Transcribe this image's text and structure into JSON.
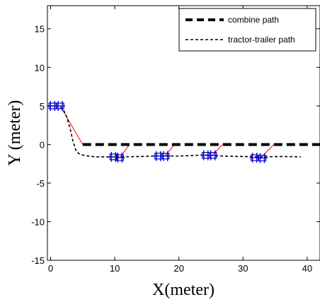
{
  "chart_data": {
    "type": "line",
    "xlabel": "X(meter)",
    "ylabel": "Y (meter)",
    "xlim": [
      -0.5,
      42
    ],
    "ylim": [
      -15,
      18
    ],
    "xticks": [
      0,
      10,
      20,
      30,
      40
    ],
    "yticks": [
      15,
      10,
      5,
      0,
      -5,
      -10,
      -15
    ],
    "grid": false,
    "legend": "top-right",
    "series": [
      {
        "name": "combine path",
        "style": "thick-dashed",
        "color": "#000000",
        "x": [
          5,
          42
        ],
        "y": [
          0,
          0
        ]
      },
      {
        "name": "tractor-trailer path",
        "style": "dashed",
        "color": "#000000",
        "x": [
          0,
          1,
          1.5,
          2,
          2.5,
          3,
          3.5,
          4,
          4.6,
          5.5,
          7,
          9,
          10.5,
          14,
          17,
          20,
          24,
          27,
          30,
          33,
          36,
          39
        ],
        "y": [
          5,
          5,
          4.9,
          4.5,
          3.6,
          2.2,
          0.4,
          -0.9,
          -1.3,
          -1.45,
          -1.6,
          -1.6,
          -1.6,
          -1.55,
          -1.45,
          -1.5,
          -1.35,
          -1.5,
          -1.55,
          -1.6,
          -1.55,
          -1.6
        ]
      }
    ],
    "guides": [
      {
        "color": "#ff0000",
        "x": [
          1.5,
          5
        ],
        "y": [
          5,
          0
        ]
      },
      {
        "color": "#ff0000",
        "x": [
          10.8,
          12.3
        ],
        "y": [
          -1.7,
          0
        ]
      },
      {
        "color": "#ff0000",
        "x": [
          17.8,
          19.3
        ],
        "y": [
          -1.5,
          0
        ]
      },
      {
        "color": "#ff0000",
        "x": [
          25.2,
          26.8
        ],
        "y": [
          -1.4,
          0
        ]
      },
      {
        "color": "#ff0000",
        "x": [
          32.8,
          34.8
        ],
        "y": [
          -1.7,
          0
        ]
      }
    ],
    "vehicles": {
      "color": "#0000cc",
      "positions": [
        {
          "x": 0.3,
          "y": 5
        },
        {
          "x": 1.5,
          "y": 5
        },
        {
          "x": 9.8,
          "y": -1.6
        },
        {
          "x": 10.8,
          "y": -1.7
        },
        {
          "x": 16.8,
          "y": -1.5
        },
        {
          "x": 17.9,
          "y": -1.5
        },
        {
          "x": 24.2,
          "y": -1.4
        },
        {
          "x": 25.3,
          "y": -1.4
        },
        {
          "x": 31.8,
          "y": -1.7
        },
        {
          "x": 33,
          "y": -1.75
        }
      ]
    }
  }
}
